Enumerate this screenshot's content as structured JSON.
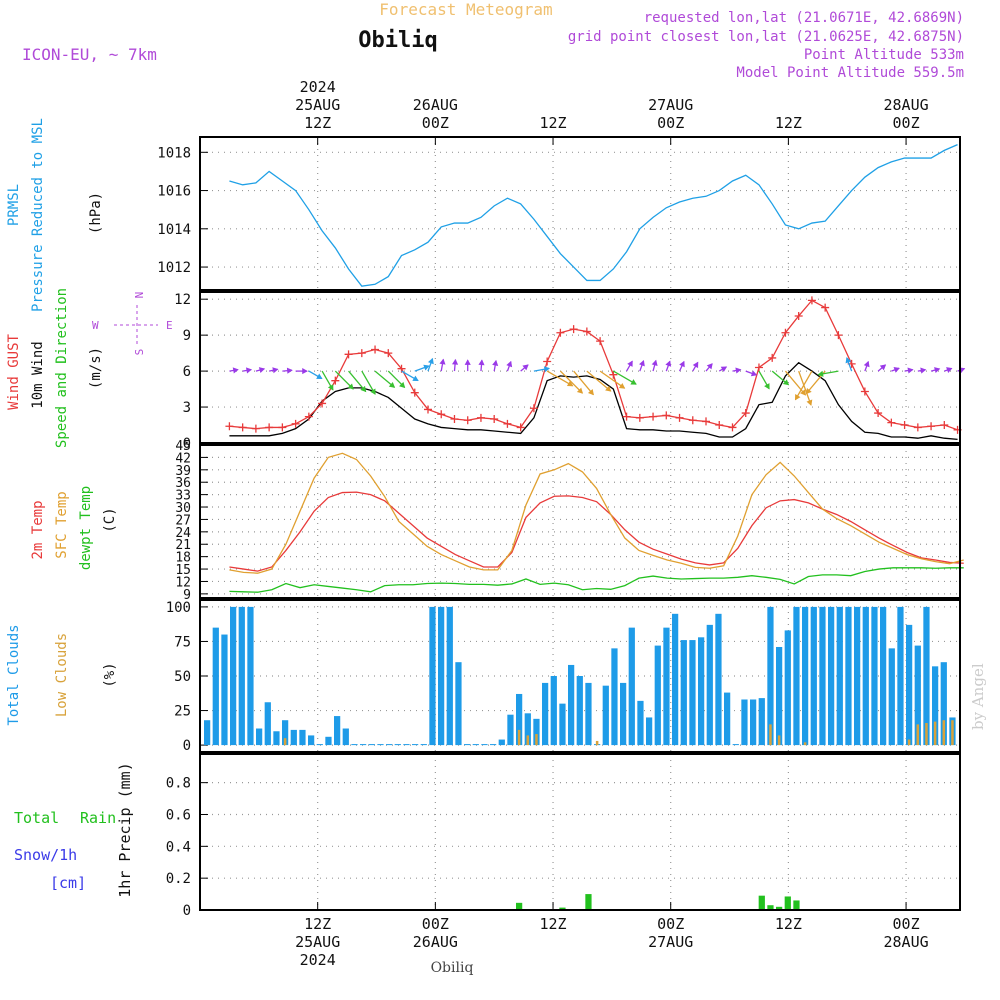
{
  "header": {
    "title": "Forecast Meteogram",
    "location": "Obiliq",
    "model": "ICON-EU, ~ 7km",
    "requested": "requested lon,lat (21.0671E, 42.6869N)",
    "grid_point": "grid point closest lon,lat (21.0625E, 42.6875N)",
    "point_altitude": "Point Altitude 533m",
    "model_altitude": "Model Point Altitude 559.5m",
    "footer_location": "Obiliq",
    "watermark": "by Angel"
  },
  "colors": {
    "pressure": "#1fa0e6",
    "gust": "#e83a3a",
    "wind": "#000000",
    "temp2m": "#e83a3a",
    "sfc": "#e0a030",
    "dewpt": "#22c01e",
    "total_clouds": "#1e9be8",
    "low_clouds": "#d8a23a",
    "rain": "#22c01e",
    "snow": "#3a3ae8",
    "compass": "#b04ad8",
    "info": "#b04ad8",
    "title": "#f0c070"
  },
  "time_axis": {
    "top_year": "2024",
    "ticks": [
      {
        "hour": 9,
        "time": "12Z",
        "date": "25AUG"
      },
      {
        "hour": 21,
        "time": "00Z",
        "date": "26AUG"
      },
      {
        "hour": 33,
        "time": "12Z",
        "date": ""
      },
      {
        "hour": 45,
        "time": "00Z",
        "date": "27AUG"
      },
      {
        "hour": 57,
        "time": "12Z",
        "date": ""
      },
      {
        "hour": 69,
        "time": "00Z",
        "date": "28AUG"
      }
    ],
    "bottom_year": "2024"
  },
  "chart_data": [
    {
      "type": "line",
      "panel": "pressure",
      "ylabels": [
        "PRMSL",
        "Pressure Reduced to MSL",
        "(hPa)"
      ],
      "ylim": [
        1010.8,
        1018.8
      ],
      "yticks": [
        1012,
        1014,
        1016,
        1018
      ],
      "series": [
        {
          "name": "PRMSL",
          "values": [
            1016.5,
            1016.3,
            1016.4,
            1017.0,
            1016.5,
            1016.0,
            1015.0,
            1013.9,
            1013.0,
            1011.9,
            1011.0,
            1011.1,
            1011.5,
            1012.6,
            1012.9,
            1013.3,
            1014.1,
            1014.3,
            1014.3,
            1014.6,
            1015.2,
            1015.6,
            1015.3,
            1014.5,
            1013.6,
            1012.7,
            1012.0,
            1011.3,
            1011.3,
            1011.9,
            1012.8,
            1014.0,
            1014.6,
            1015.1,
            1015.4,
            1015.6,
            1015.7,
            1016.0,
            1016.5,
            1016.8,
            1016.3,
            1015.3,
            1014.2,
            1014.0,
            1014.3,
            1014.4,
            1015.2,
            1016.0,
            1016.7,
            1017.2,
            1017.5,
            1017.7,
            1017.7,
            1017.7,
            1018.1,
            1018.4
          ]
        }
      ]
    },
    {
      "type": "line",
      "panel": "wind",
      "ylabels": [
        "Wind GUST",
        "10m Wind",
        "Speed and Direction",
        "(m/s)"
      ],
      "compass": {
        "n": "N",
        "e": "E",
        "s": "S",
        "w": "W"
      },
      "ylim": [
        0,
        12.6
      ],
      "yticks": [
        0,
        3,
        6,
        9,
        12
      ],
      "series": [
        {
          "name": "Wind GUST",
          "values": [
            1.4,
            1.3,
            1.2,
            1.3,
            1.3,
            1.6,
            2.2,
            3.3,
            5.2,
            7.4,
            7.5,
            7.8,
            7.5,
            6.2,
            4.2,
            2.8,
            2.4,
            2.0,
            1.9,
            2.1,
            2.0,
            1.6,
            1.3,
            2.9,
            6.8,
            9.2,
            9.5,
            9.3,
            8.5,
            5.7,
            2.2,
            2.1,
            2.2,
            2.3,
            2.1,
            1.9,
            1.8,
            1.5,
            1.3,
            2.5,
            6.3,
            7.1,
            9.2,
            10.6,
            11.9,
            11.3,
            9.0,
            6.6,
            4.3,
            2.5,
            1.7,
            1.5,
            1.3,
            1.4,
            1.5,
            1.1
          ]
        },
        {
          "name": "10m Wind",
          "values": [
            0.6,
            0.6,
            0.6,
            0.6,
            0.8,
            1.2,
            2.0,
            3.5,
            4.3,
            4.6,
            4.6,
            4.3,
            3.8,
            2.9,
            2.0,
            1.6,
            1.3,
            1.2,
            1.1,
            1.1,
            1.0,
            0.9,
            0.8,
            2.1,
            5.2,
            5.6,
            5.5,
            5.6,
            5.3,
            4.5,
            1.2,
            1.1,
            1.1,
            1.0,
            1.0,
            0.9,
            0.8,
            0.5,
            0.5,
            1.2,
            3.2,
            3.4,
            5.6,
            6.7,
            6.0,
            5.2,
            3.2,
            1.8,
            0.9,
            0.8,
            0.5,
            0.5,
            0.4,
            0.6,
            0.4,
            0.3
          ]
        },
        {
          "name": "Wind direction (deg)",
          "values": [
            260,
            260,
            255,
            258,
            265,
            270,
            300,
            330,
            315,
            320,
            330,
            310,
            315,
            300,
            250,
            200,
            190,
            185,
            180,
            185,
            190,
            200,
            230,
            260,
            300,
            315,
            320,
            310,
            305,
            300,
            210,
            200,
            195,
            200,
            205,
            210,
            220,
            240,
            260,
            290,
            330,
            310,
            320,
            340,
            30,
            40,
            80,
            160,
            200,
            230,
            250,
            260,
            260,
            255,
            250,
            250
          ]
        }
      ]
    },
    {
      "type": "line",
      "panel": "temperature",
      "ylabels": [
        "2m Temp",
        "SFC Temp",
        "dewpt Temp",
        "(C)"
      ],
      "ylim": [
        8,
        45
      ],
      "yticks": [
        9,
        12,
        15,
        18,
        21,
        24,
        27,
        30,
        33,
        36,
        39,
        42,
        45
      ],
      "series": [
        {
          "name": "2m Temp",
          "values": [
            15.5,
            15.0,
            14.5,
            15.5,
            19.5,
            24.0,
            29.0,
            32.3,
            33.5,
            33.6,
            33.0,
            31.5,
            28.5,
            25.5,
            22.5,
            20.5,
            18.5,
            17.0,
            15.5,
            15.5,
            19.0,
            27.5,
            31.0,
            32.6,
            32.7,
            32.3,
            31.3,
            28.2,
            24.5,
            21.5,
            19.8,
            18.6,
            17.4,
            16.5,
            16.0,
            16.5,
            20.0,
            25.5,
            29.8,
            31.5,
            31.8,
            31.0,
            29.5,
            28.2,
            26.5,
            24.5,
            22.5,
            20.7,
            19.0,
            17.7,
            17.2,
            16.6,
            16.4
          ]
        },
        {
          "name": "SFC Temp",
          "values": [
            14.8,
            14.2,
            14.0,
            15.0,
            21.0,
            29.0,
            37.0,
            42.0,
            43.0,
            41.5,
            37.5,
            32.5,
            26.5,
            23.5,
            20.5,
            18.5,
            17.0,
            15.5,
            14.8,
            14.8,
            19.5,
            30.5,
            38.0,
            39.0,
            40.5,
            38.5,
            34.5,
            28.2,
            22.5,
            19.5,
            18.3,
            17.2,
            16.4,
            15.4,
            15.2,
            15.8,
            23.0,
            33.0,
            37.8,
            40.8,
            37.5,
            33.5,
            29.5,
            27.2,
            25.5,
            23.5,
            21.5,
            20.0,
            18.5,
            17.5,
            16.8,
            16.3,
            17.2
          ]
        },
        {
          "name": "dewpt Temp",
          "values": [
            9.6,
            9.5,
            9.4,
            10.0,
            11.5,
            10.5,
            11.2,
            10.8,
            10.4,
            10.0,
            9.5,
            11.0,
            11.2,
            11.2,
            11.5,
            11.6,
            11.5,
            11.3,
            11.3,
            11.1,
            11.4,
            12.6,
            11.3,
            11.6,
            11.2,
            10.0,
            10.3,
            10.1,
            11.0,
            12.8,
            13.3,
            12.8,
            12.6,
            12.7,
            12.8,
            12.8,
            13.0,
            13.4,
            13.0,
            12.5,
            11.4,
            13.2,
            13.6,
            13.6,
            13.4,
            14.4,
            15.0,
            15.3,
            15.3,
            15.3,
            15.2,
            15.3,
            15.3
          ]
        }
      ]
    },
    {
      "type": "bar",
      "panel": "clouds",
      "ylabels": [
        "Total Clouds",
        "Low Clouds",
        "(%)"
      ],
      "ylim": [
        -5,
        105
      ],
      "yticks": [
        0,
        25,
        50,
        75,
        100
      ],
      "series": [
        {
          "name": "Total Clouds",
          "values": [
            18,
            85,
            80,
            100,
            100,
            100,
            12,
            31,
            10,
            18,
            11,
            11,
            7,
            0,
            6,
            21,
            12,
            0,
            0,
            0,
            0,
            0,
            0,
            0,
            0,
            0,
            100,
            100,
            100,
            60,
            0,
            0,
            0,
            0,
            4,
            22,
            37,
            23,
            19,
            45,
            50,
            30,
            58,
            50,
            45,
            0,
            43,
            70,
            45,
            85,
            32,
            20,
            72,
            85,
            95,
            76,
            76,
            78,
            87,
            95,
            38,
            0,
            33,
            33,
            34,
            100,
            71,
            83,
            100,
            100,
            100,
            100,
            100,
            100,
            100,
            100,
            100,
            100,
            100,
            70,
            100,
            87,
            72,
            100,
            57,
            60,
            20
          ]
        },
        {
          "name": "Low Clouds",
          "values": [
            0,
            0,
            0,
            0,
            0,
            0,
            0,
            0,
            0,
            5,
            0,
            0,
            0,
            0,
            0,
            0,
            0,
            0,
            0,
            0,
            0,
            0,
            0,
            0,
            0,
            0,
            0,
            0,
            0,
            0,
            0,
            0,
            0,
            0,
            0,
            0,
            11,
            7,
            8,
            0,
            0,
            0,
            0,
            0,
            0,
            3,
            0,
            0,
            0,
            0,
            0,
            0,
            0,
            0,
            0,
            0,
            0,
            0,
            0,
            0,
            0,
            0,
            0,
            0,
            0,
            15,
            7,
            0,
            0,
            2,
            0,
            0,
            0,
            0,
            0,
            0,
            0,
            0,
            0,
            0,
            0,
            4,
            15,
            16,
            17,
            18,
            18
          ]
        }
      ]
    },
    {
      "type": "bar",
      "panel": "precip",
      "ylabels": [
        "1hr Precip (mm)"
      ],
      "legend": {
        "total": "Total",
        "rain": "Rain",
        "snow": "Snow/1h",
        "unit": "[cm]"
      },
      "ylim": [
        0,
        0.98
      ],
      "yticks": [
        0,
        0.2,
        0.4,
        0.6,
        0.8
      ],
      "tick_labels": [
        "0",
        "0.2",
        "0.4",
        "0.6",
        "0.8"
      ],
      "series": [
        {
          "name": "Rain",
          "values": [
            0,
            0,
            0,
            0,
            0,
            0,
            0,
            0,
            0,
            0,
            0,
            0,
            0,
            0,
            0,
            0,
            0,
            0,
            0,
            0,
            0,
            0,
            0,
            0,
            0,
            0,
            0,
            0,
            0,
            0,
            0,
            0,
            0,
            0,
            0,
            0,
            0.045,
            0,
            0,
            0,
            0,
            0.015,
            0,
            0,
            0.1,
            0,
            0,
            0,
            0,
            0,
            0,
            0,
            0,
            0,
            0,
            0,
            0,
            0,
            0,
            0,
            0,
            0,
            0,
            0,
            0.09,
            0.03,
            0.02,
            0.085,
            0.06,
            0,
            0,
            0,
            0,
            0,
            0,
            0,
            0,
            0,
            0,
            0,
            0,
            0,
            0,
            0,
            0,
            0,
            0
          ]
        }
      ]
    }
  ]
}
